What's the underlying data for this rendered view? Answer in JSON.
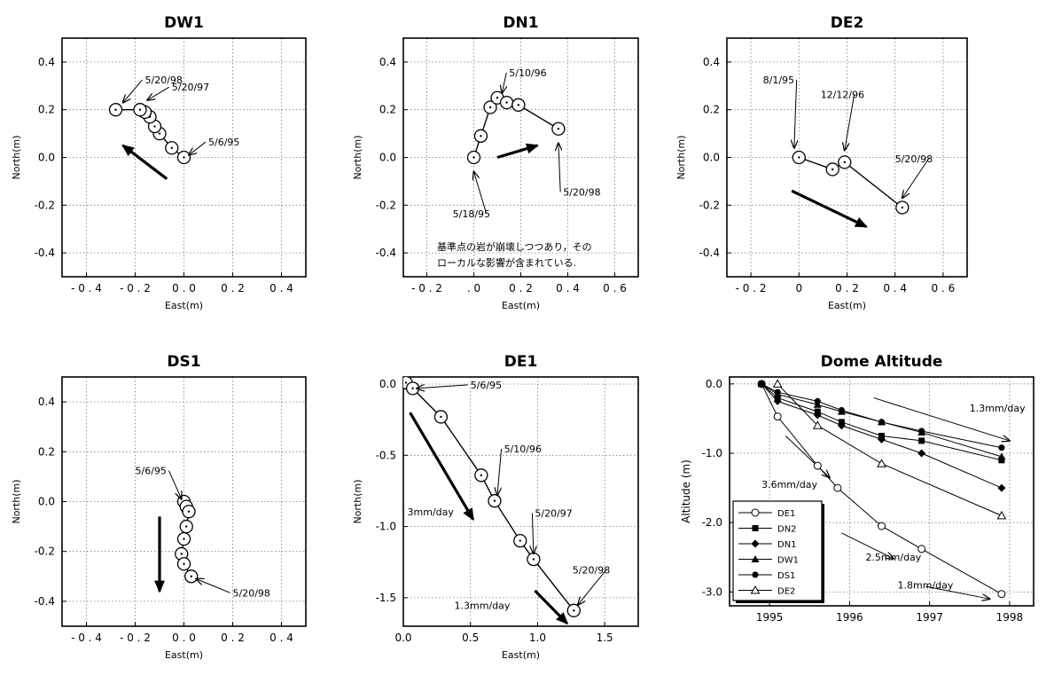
{
  "chart_data": [
    {
      "id": "DW1",
      "type": "line",
      "title": "DW1",
      "xlabel": "East(m)",
      "ylabel": "North(m)",
      "xlim": [
        -0.5,
        0.5
      ],
      "ylim": [
        -0.5,
        0.5
      ],
      "xticks": [
        -0.4,
        -0.2,
        0.0,
        0.2,
        0.4
      ],
      "xtick_labels": [
        "- 0 . 4",
        "- 0 . 2",
        "0 . 0",
        "0 . 2",
        "0 . 4"
      ],
      "yticks": [
        0.4,
        0.2,
        0.0,
        -0.2,
        -0.4
      ],
      "ytick_labels": [
        "0.4",
        "0.2",
        "0.0",
        "-0.2",
        "-0.4"
      ],
      "grid": true,
      "series": [
        {
          "x": [
            0.0,
            -0.05,
            -0.1,
            -0.12,
            -0.14,
            -0.16,
            -0.18,
            -0.28
          ],
          "y": [
            0.0,
            0.04,
            0.1,
            0.13,
            0.17,
            0.19,
            0.2,
            0.2
          ]
        }
      ],
      "annotations": [
        {
          "text": "5/20/98",
          "x": -0.16,
          "y": 0.31,
          "ax": -0.25,
          "ay": 0.23
        },
        {
          "text": "5/20/97",
          "x": -0.05,
          "y": 0.28,
          "ax": -0.15,
          "ay": 0.24
        },
        {
          "text": "5/6/95",
          "x": 0.1,
          "y": 0.05,
          "ax": 0.02,
          "ay": 0.01
        }
      ],
      "arrows": [
        {
          "x1": -0.07,
          "y1": -0.09,
          "x2": -0.25,
          "y2": 0.05
        }
      ]
    },
    {
      "id": "DN1",
      "type": "line",
      "title": "DN1",
      "xlabel": "East(m)",
      "ylabel": "North(m)",
      "xlim": [
        -0.3,
        0.7
      ],
      "ylim": [
        -0.5,
        0.5
      ],
      "xticks": [
        -0.2,
        0.0,
        0.2,
        0.4,
        0.6
      ],
      "xtick_labels": [
        "- 0 . 2",
        ". 0",
        "0 . 2",
        "0 . 4",
        "0 . 6"
      ],
      "yticks": [
        0.4,
        0.2,
        0.0,
        -0.2,
        -0.4
      ],
      "ytick_labels": [
        "0.4",
        "0.2",
        "0.0",
        "-0.2",
        "-0.4"
      ],
      "grid": true,
      "series": [
        {
          "x": [
            0.0,
            0.03,
            0.07,
            0.1,
            0.14,
            0.19,
            0.36
          ],
          "y": [
            0.0,
            0.09,
            0.21,
            0.25,
            0.23,
            0.22,
            0.12
          ]
        }
      ],
      "annotations": [
        {
          "text": "5/10/96",
          "x": 0.15,
          "y": 0.34,
          "ax": 0.12,
          "ay": 0.27
        },
        {
          "text": "5/20/98",
          "x": 0.38,
          "y": -0.16,
          "ax": 0.36,
          "ay": 0.06
        },
        {
          "text": "5/18/95",
          "x": -0.09,
          "y": -0.25,
          "ax": 0.0,
          "ay": -0.06
        }
      ],
      "arrows": [
        {
          "x1": 0.1,
          "y1": 0.0,
          "x2": 0.27,
          "y2": 0.05
        }
      ],
      "note_lines": [
        "基準点の岩が崩壊しつつあり，その",
        "ローカルな影響が含まれている."
      ]
    },
    {
      "id": "DE2",
      "type": "line",
      "title": "DE2",
      "xlabel": "East(m)",
      "ylabel": "North(m)",
      "xlim": [
        -0.3,
        0.7
      ],
      "ylim": [
        -0.5,
        0.5
      ],
      "xticks": [
        -0.2,
        0.0,
        0.2,
        0.4,
        0.6
      ],
      "xtick_labels": [
        "- 0 . 2",
        "0",
        "0 . 2",
        "0 . 4",
        "0 . 6"
      ],
      "yticks": [
        0.4,
        0.2,
        0.0,
        -0.2,
        -0.4
      ],
      "ytick_labels": [
        "0.4",
        "0.2",
        "0.0",
        "-0.2",
        "-0.4"
      ],
      "grid": true,
      "series": [
        {
          "x": [
            0.0,
            0.14,
            0.19,
            0.43
          ],
          "y": [
            0.0,
            -0.05,
            -0.02,
            -0.21
          ]
        }
      ],
      "annotations": [
        {
          "text": "8/1/95",
          "x": -0.15,
          "y": 0.31,
          "ax": -0.02,
          "ay": 0.04
        },
        {
          "text": "12/12/96",
          "x": 0.09,
          "y": 0.25,
          "ax": 0.19,
          "ay": 0.03
        },
        {
          "text": "5/20/98",
          "x": 0.4,
          "y": -0.02,
          "ax": 0.43,
          "ay": -0.17
        }
      ],
      "arrows": [
        {
          "x1": -0.03,
          "y1": -0.14,
          "x2": 0.28,
          "y2": -0.29
        }
      ]
    },
    {
      "id": "DS1",
      "type": "line",
      "title": "DS1",
      "xlabel": "East(m)",
      "ylabel": "North(m)",
      "xlim": [
        -0.5,
        0.5
      ],
      "ylim": [
        -0.5,
        0.5
      ],
      "xticks": [
        -0.4,
        -0.2,
        0.0,
        0.2,
        0.4
      ],
      "xtick_labels": [
        "- 0 . 4",
        "- 0 . 2",
        "0 . 0",
        "0 . 2",
        "0 . 4"
      ],
      "yticks": [
        0.4,
        0.2,
        0.0,
        -0.2,
        -0.4
      ],
      "ytick_labels": [
        "0.4",
        "0.2",
        "0.0",
        "-0.2",
        "-0.4"
      ],
      "grid": true,
      "series": [
        {
          "x": [
            0.0,
            0.01,
            0.02,
            0.01,
            0.0,
            -0.01,
            0.0,
            0.03
          ],
          "y": [
            0.0,
            -0.02,
            -0.04,
            -0.1,
            -0.15,
            -0.21,
            -0.25,
            -0.3
          ]
        }
      ],
      "annotations": [
        {
          "text": "5/6/95",
          "x": -0.2,
          "y": 0.11,
          "ax": -0.01,
          "ay": 0.01
        },
        {
          "text": "5/20/98",
          "x": 0.2,
          "y": -0.38,
          "ax": 0.05,
          "ay": -0.31
        }
      ],
      "arrows": [
        {
          "x1": -0.1,
          "y1": -0.06,
          "x2": -0.1,
          "y2": -0.36
        }
      ]
    },
    {
      "id": "DE1",
      "type": "line",
      "title": "DE1",
      "xlabel": "East(m)",
      "ylabel": "North(m)",
      "xlim": [
        0.0,
        1.75
      ],
      "ylim": [
        -1.7,
        0.05
      ],
      "xticks": [
        0.0,
        0.5,
        1.0,
        1.5
      ],
      "xtick_labels": [
        "0.0",
        "0.5",
        "1.0",
        "1.5"
      ],
      "yticks": [
        0.0,
        -0.5,
        -1.0,
        -1.5
      ],
      "ytick_labels": [
        "0.0",
        "-0.5",
        "-1.0",
        "-1.5"
      ],
      "grid": true,
      "series": [
        {
          "x": [
            0.02,
            0.07,
            0.28,
            0.58,
            0.68,
            0.87,
            0.97,
            1.27
          ],
          "y": [
            0.01,
            -0.03,
            -0.23,
            -0.64,
            -0.82,
            -1.1,
            -1.23,
            -1.59
          ]
        }
      ],
      "annotations": [
        {
          "text": "5/6/95",
          "x": 0.5,
          "y": -0.03,
          "ax": 0.1,
          "ay": -0.03
        },
        {
          "text": "5/10/96",
          "x": 0.75,
          "y": -0.48,
          "ax": 0.7,
          "ay": -0.78
        },
        {
          "text": "5/20/97",
          "x": 0.98,
          "y": -0.93,
          "ax": 0.97,
          "ay": -1.19
        },
        {
          "text": "5/20/98",
          "x": 1.26,
          "y": -1.33,
          "ax": 1.3,
          "ay": -1.55
        },
        {
          "text": "3mm/day",
          "x": 0.03,
          "y": -0.92,
          "ax": null,
          "ay": null
        },
        {
          "text": "1.3mm/day",
          "x": 0.38,
          "y": -1.58,
          "ax": null,
          "ay": null
        }
      ],
      "arrows": [
        {
          "x1": 0.05,
          "y1": -0.2,
          "x2": 0.52,
          "y2": -0.95
        },
        {
          "x1": 0.98,
          "y1": -1.45,
          "x2": 1.22,
          "y2": -1.68
        }
      ]
    },
    {
      "id": "DomeAltitude",
      "type": "line",
      "title": "Dome   Altitude",
      "xlabel": "",
      "ylabel": "Altitude  (m)",
      "xlim": [
        1994.5,
        1998.3
      ],
      "ylim": [
        -3.2,
        0.1
      ],
      "xticks": [
        1995,
        1996,
        1997,
        1998
      ],
      "xtick_labels": [
        "1995",
        "1996",
        "1997",
        "1998"
      ],
      "yticks": [
        0.0,
        -1.0,
        -2.0,
        -3.0
      ],
      "ytick_labels": [
        "0.0",
        "-1.0",
        "-2.0",
        "-3.0"
      ],
      "grid": true,
      "series": [
        {
          "name": "DE1",
          "marker": "open-circle",
          "x": [
            1994.9,
            1995.1,
            1995.6,
            1995.85,
            1996.4,
            1996.9,
            1997.9
          ],
          "y": [
            0.0,
            -0.47,
            -1.18,
            -1.5,
            -2.05,
            -2.38,
            -3.03
          ]
        },
        {
          "name": "DN2",
          "marker": "filled-square",
          "x": [
            1994.9,
            1995.1,
            1995.6,
            1995.9,
            1996.4,
            1996.9,
            1997.9
          ],
          "y": [
            0.0,
            -0.2,
            -0.4,
            -0.55,
            -0.75,
            -0.82,
            -1.1
          ]
        },
        {
          "name": "DN1",
          "marker": "filled-diamond",
          "x": [
            1994.9,
            1995.1,
            1995.6,
            1995.9,
            1996.4,
            1996.9,
            1997.9
          ],
          "y": [
            0.0,
            -0.25,
            -0.45,
            -0.6,
            -0.8,
            -1.0,
            -1.5
          ]
        },
        {
          "name": "DW1",
          "marker": "filled-triangle",
          "x": [
            1994.9,
            1995.1,
            1995.6,
            1995.9,
            1996.4,
            1996.9,
            1997.9
          ],
          "y": [
            0.0,
            -0.15,
            -0.3,
            -0.4,
            -0.55,
            -0.7,
            -1.05
          ]
        },
        {
          "name": "DS1",
          "marker": "filled-circle",
          "x": [
            1994.9,
            1995.1,
            1995.6,
            1995.9,
            1996.4,
            1996.9,
            1997.9
          ],
          "y": [
            0.0,
            -0.12,
            -0.25,
            -0.38,
            -0.55,
            -0.68,
            -0.92
          ]
        },
        {
          "name": "DE2",
          "marker": "open-triangle",
          "x": [
            1995.1,
            1995.6,
            1996.4,
            1997.9
          ],
          "y": [
            0.0,
            -0.6,
            -1.15,
            -1.9
          ]
        }
      ],
      "legend_position": "bottom-left",
      "annotations": [
        {
          "text": "1.3mm/day",
          "x": 1997.5,
          "y": -0.4,
          "ax": null,
          "ay": null
        },
        {
          "text": "3.6mm/day",
          "x": 1994.9,
          "y": -1.5,
          "ax": null,
          "ay": null
        },
        {
          "text": "2.5mm/day",
          "x": 1996.2,
          "y": -2.55,
          "ax": null,
          "ay": null
        },
        {
          "text": "1.8mm/day",
          "x": 1996.6,
          "y": -2.95,
          "ax": null,
          "ay": null
        }
      ],
      "arrows": [
        {
          "x1": 1996.3,
          "y1": -0.2,
          "x2": 1998.0,
          "y2": -0.82
        },
        {
          "x1": 1995.2,
          "y1": -0.75,
          "x2": 1995.75,
          "y2": -1.35
        },
        {
          "x1": 1995.9,
          "y1": -2.15,
          "x2": 1996.55,
          "y2": -2.52
        },
        {
          "x1": 1996.95,
          "y1": -2.92,
          "x2": 1997.75,
          "y2": -3.1
        }
      ]
    }
  ]
}
